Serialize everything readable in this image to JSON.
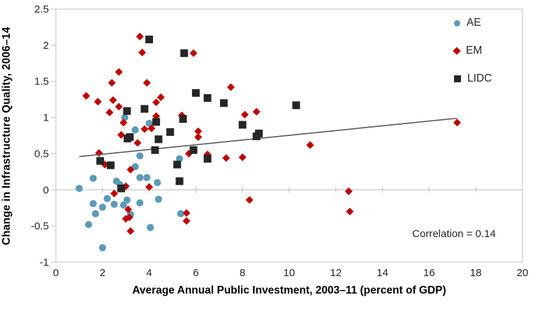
{
  "chart_data": {
    "type": "scatter",
    "xlabel": "Average Annual Public Investment, 2003–11 (percent of GDP)",
    "ylabel": "Change in Infrastructure Quality, 2006–14",
    "annotation": "Correlation = 0.14",
    "xlim": [
      0,
      20
    ],
    "ylim": [
      -1,
      2.5
    ],
    "xticks": [
      0,
      2,
      4,
      6,
      8,
      10,
      12,
      14,
      16,
      18,
      20
    ],
    "yticks": [
      2.5,
      2,
      1.5,
      1,
      0.5,
      0,
      -0.5,
      -1
    ],
    "grid": "zero-line-only",
    "legend_position": "top-right-inside",
    "series": [
      {
        "name": "AE",
        "marker": "circle",
        "color": "#5b9bb8",
        "points": [
          [
            1.0,
            0.02
          ],
          [
            1.6,
            0.16
          ],
          [
            2.95,
            1.0
          ],
          [
            3.4,
            0.83
          ],
          [
            4.0,
            0.92
          ],
          [
            3.4,
            0.32
          ],
          [
            3.6,
            0.47
          ],
          [
            3.6,
            0.17
          ],
          [
            3.9,
            0.17
          ],
          [
            4.35,
            0.1
          ],
          [
            2.6,
            0.12
          ],
          [
            2.75,
            0.07
          ],
          [
            5.3,
            0.43
          ],
          [
            1.4,
            -0.48
          ],
          [
            1.6,
            -0.19
          ],
          [
            1.7,
            -0.33
          ],
          [
            2.0,
            -0.24
          ],
          [
            2.2,
            -0.12
          ],
          [
            2.5,
            -0.2
          ],
          [
            2.9,
            -0.21
          ],
          [
            3.05,
            -0.14
          ],
          [
            3.2,
            -0.34
          ],
          [
            3.6,
            -0.18
          ],
          [
            4.4,
            -0.13
          ],
          [
            4.05,
            -0.52
          ],
          [
            2.0,
            -0.8
          ],
          [
            5.35,
            -0.33
          ]
        ]
      },
      {
        "name": "EM",
        "marker": "diamond",
        "color": "#c00000",
        "points": [
          [
            1.3,
            1.3
          ],
          [
            1.8,
            1.22
          ],
          [
            2.45,
            1.24
          ],
          [
            2.7,
            1.15
          ],
          [
            2.3,
            1.07
          ],
          [
            2.4,
            1.48
          ],
          [
            2.7,
            1.63
          ],
          [
            3.6,
            2.12
          ],
          [
            3.7,
            1.9
          ],
          [
            3.9,
            1.48
          ],
          [
            4.3,
            1.21
          ],
          [
            4.5,
            1.28
          ],
          [
            4.3,
            1.02
          ],
          [
            5.4,
            1.03
          ],
          [
            2.9,
            0.93
          ],
          [
            2.8,
            0.76
          ],
          [
            3.5,
            0.65
          ],
          [
            3.8,
            0.84
          ],
          [
            4.1,
            0.85
          ],
          [
            1.85,
            0.51
          ],
          [
            2.1,
            0.35
          ],
          [
            3.2,
            0.28
          ],
          [
            3.0,
            0.05
          ],
          [
            4.0,
            0.04
          ],
          [
            2.5,
            -0.05
          ],
          [
            3.1,
            -0.27
          ],
          [
            3.0,
            -0.4
          ],
          [
            3.15,
            -0.38
          ],
          [
            3.2,
            -0.57
          ],
          [
            5.7,
            0.5
          ],
          [
            6.1,
            0.81
          ],
          [
            6.1,
            0.73
          ],
          [
            6.5,
            0.49
          ],
          [
            7.3,
            0.44
          ],
          [
            8.0,
            0.45
          ],
          [
            5.6,
            -0.32
          ],
          [
            5.6,
            -0.43
          ],
          [
            8.3,
            -0.14
          ],
          [
            5.9,
            1.89
          ],
          [
            7.5,
            1.42
          ],
          [
            8.1,
            1.04
          ],
          [
            8.6,
            1.08
          ],
          [
            10.9,
            0.62
          ],
          [
            12.55,
            -0.02
          ],
          [
            12.6,
            -0.3
          ],
          [
            17.2,
            0.93
          ]
        ]
      },
      {
        "name": "LIDC",
        "marker": "square",
        "color": "#262626",
        "points": [
          [
            4.0,
            2.08
          ],
          [
            5.5,
            1.89
          ],
          [
            3.05,
            1.09
          ],
          [
            3.8,
            1.12
          ],
          [
            6.0,
            1.34
          ],
          [
            6.5,
            1.27
          ],
          [
            7.2,
            1.2
          ],
          [
            8.0,
            0.9
          ],
          [
            8.6,
            0.74
          ],
          [
            8.7,
            0.78
          ],
          [
            10.3,
            1.17
          ],
          [
            4.3,
            0.94
          ],
          [
            4.9,
            0.8
          ],
          [
            5.45,
            0.98
          ],
          [
            3.07,
            0.71
          ],
          [
            3.17,
            0.73
          ],
          [
            4.4,
            0.7
          ],
          [
            4.25,
            0.55
          ],
          [
            5.9,
            0.55
          ],
          [
            6.5,
            0.43
          ],
          [
            1.9,
            0.4
          ],
          [
            2.35,
            0.34
          ],
          [
            5.2,
            0.35
          ],
          [
            2.8,
            0.02
          ],
          [
            5.3,
            0.12
          ]
        ]
      }
    ],
    "trendline": {
      "x1": 1.0,
      "y1": 0.46,
      "x2": 17.2,
      "y2": 0.99,
      "color": "#595959"
    }
  },
  "colors": {
    "frame": "#bfbfbf",
    "zero_line": "#c6c6c6",
    "tick": "#bfbfbf",
    "tick_label": "#262626",
    "background": "#ffffff"
  }
}
